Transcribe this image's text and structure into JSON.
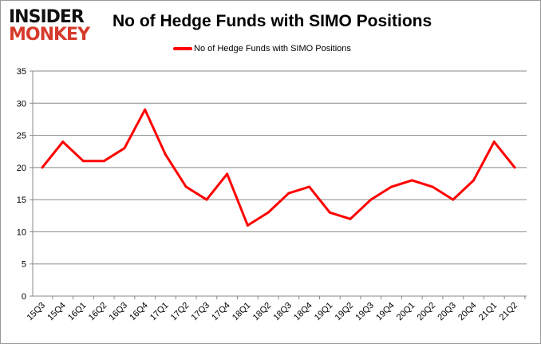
{
  "logo": {
    "line1": "INSIDER",
    "line2": "MONKEY"
  },
  "chart_data": {
    "type": "line",
    "title": "No of Hedge Funds with SIMO Positions",
    "legend_position": "top",
    "grid": "horizontal",
    "ylim": [
      0,
      35
    ],
    "yticks": [
      0,
      5,
      10,
      15,
      20,
      25,
      30,
      35
    ],
    "categories": [
      "15Q3",
      "15Q4",
      "16Q1",
      "16Q2",
      "16Q3",
      "16Q4",
      "17Q1",
      "17Q2",
      "17Q3",
      "17Q4",
      "18Q1",
      "18Q2",
      "18Q3",
      "18Q4",
      "19Q1",
      "19Q2",
      "19Q3",
      "19Q4",
      "20Q1",
      "20Q2",
      "20Q3",
      "20Q4",
      "21Q1",
      "21Q2"
    ],
    "series": [
      {
        "name": "No of Hedge Funds with SIMO Positions",
        "color": "#ff0000",
        "values": [
          20,
          24,
          21,
          21,
          23,
          29,
          22,
          17,
          15,
          19,
          11,
          13,
          16,
          17,
          13,
          12,
          15,
          17,
          18,
          17,
          15,
          18,
          24,
          20
        ]
      }
    ]
  }
}
